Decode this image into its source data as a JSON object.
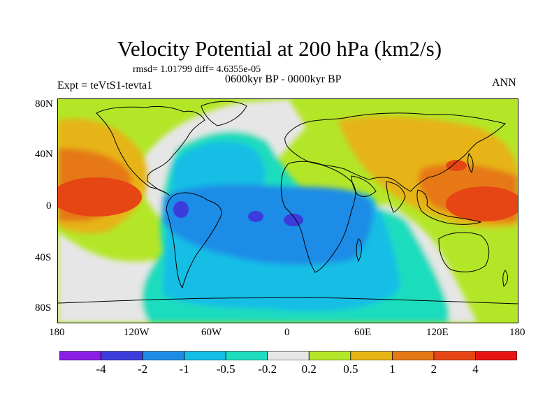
{
  "title": "Velocity Potential at 200 hPa (km2/s)",
  "stats": "rmsd= 1.01799 diff= 4.6355e-05",
  "experiment": "Expt = teVtS1-tevta1",
  "period": "0600kyr BP - 0000kyr BP",
  "season": "ANN",
  "lat_labels": [
    "80N",
    "40N",
    "0",
    "40S",
    "80S"
  ],
  "lon_labels": [
    "180",
    "120W",
    "60W",
    "0",
    "60E",
    "120E",
    "180"
  ],
  "colorbar": {
    "colors": [
      "#8a1ee6",
      "#3c3cdc",
      "#1e8ce6",
      "#14bee6",
      "#1edcbe",
      "#e6e6e6",
      "#b4e628",
      "#e6b414",
      "#e67814",
      "#e64614",
      "#e61414"
    ],
    "labels": [
      "-4",
      "-2",
      "-1",
      "-0.5",
      "-0.2",
      "0.2",
      "0.5",
      "1",
      "2",
      "4"
    ]
  }
}
